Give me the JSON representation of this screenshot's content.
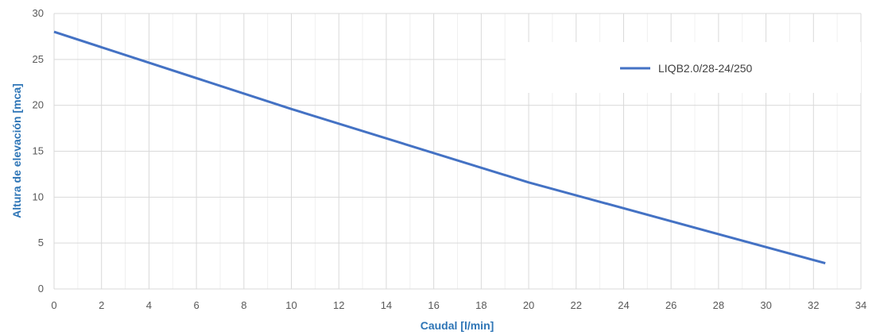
{
  "chart_data": {
    "type": "line",
    "xlabel": "Caudal [l/min]",
    "ylabel": "Altura de elevación [mca]",
    "xlim": [
      0,
      34
    ],
    "ylim": [
      0,
      30
    ],
    "x_ticks": [
      0,
      2,
      4,
      6,
      8,
      10,
      12,
      14,
      16,
      18,
      20,
      22,
      24,
      26,
      28,
      30,
      32,
      34
    ],
    "y_ticks": [
      0,
      5,
      10,
      15,
      20,
      25,
      30
    ],
    "x_minor_step": 1,
    "grid": true,
    "legend_position": "top-right",
    "series": [
      {
        "name": "LIQB2.0/28-24/250",
        "color": "#4472c4",
        "x": [
          0,
          10,
          20,
          32.5
        ],
        "y": [
          28,
          19.6,
          11.6,
          2.8
        ]
      }
    ]
  }
}
